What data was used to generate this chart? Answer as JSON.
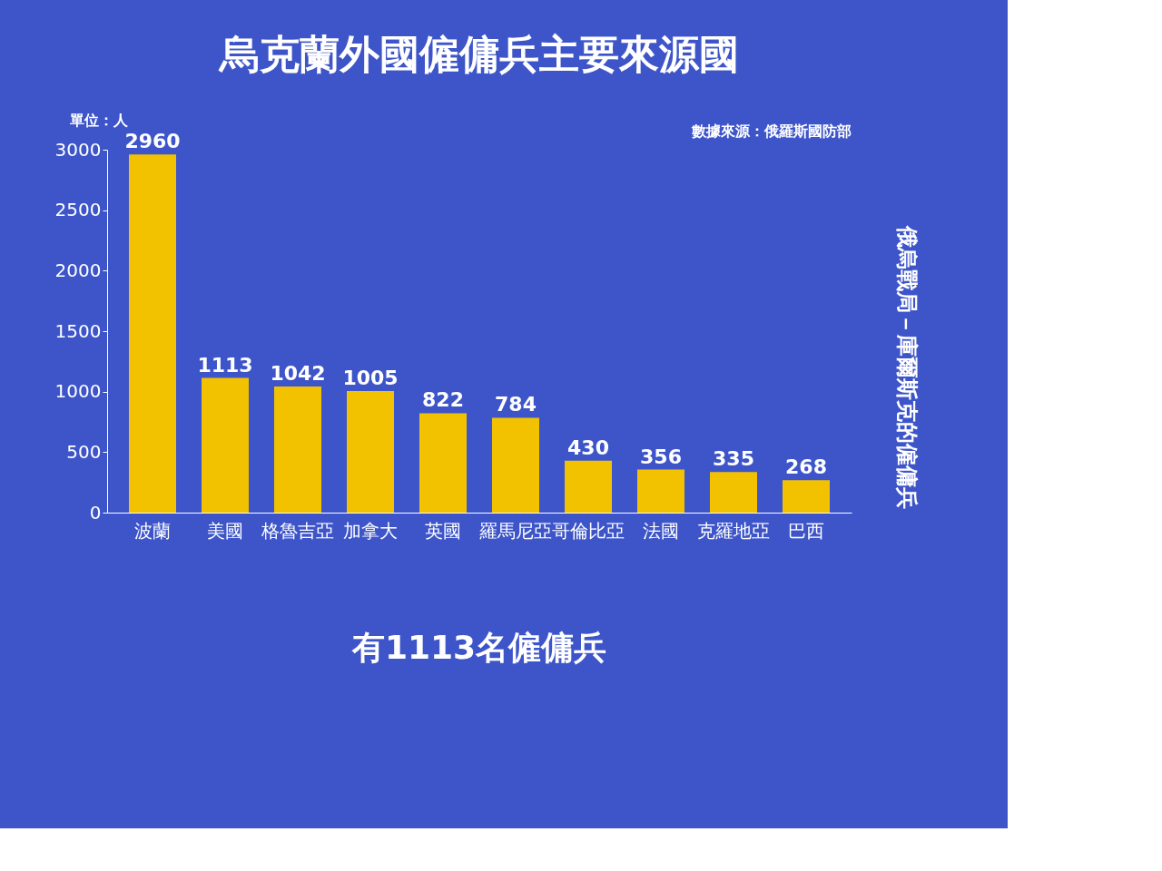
{
  "chart_data": {
    "type": "bar",
    "title": "烏克蘭外國僱傭兵主要來源國",
    "ylabel": "單位：人",
    "categories": [
      "波蘭",
      "美國",
      "格魯吉亞",
      "加拿大",
      "英國",
      "羅馬尼亞",
      "哥倫比亞",
      "法國",
      "克羅地亞",
      "巴西"
    ],
    "values": [
      2960,
      1113,
      1042,
      1005,
      822,
      784,
      430,
      356,
      335,
      268
    ],
    "color": "#f2c200",
    "data_labels": true,
    "ylim": [
      0,
      3000
    ],
    "yticks": [
      0,
      500,
      1000,
      1500,
      2000,
      2500,
      3000
    ],
    "grid": false,
    "annotations": [
      "數據來源：俄羅斯國防部",
      "俄烏戰局－庫爾斯克的僱傭兵",
      "有1113名僱傭兵"
    ]
  }
}
